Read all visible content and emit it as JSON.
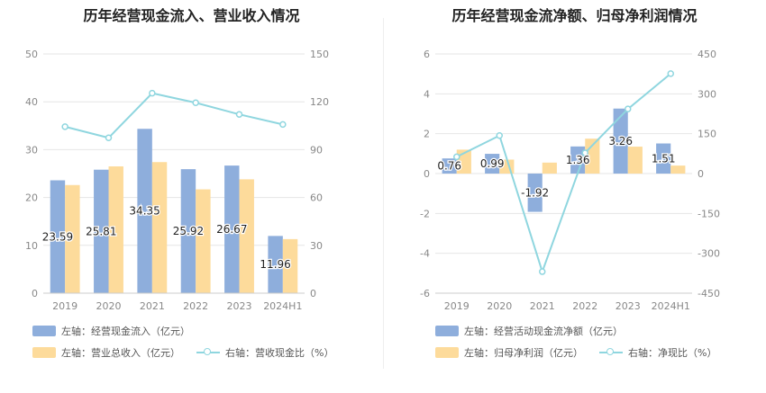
{
  "colors": {
    "bar1": "#8eaedc",
    "bar2": "#fddb9b",
    "line": "#8fd6df",
    "grid": "#e6e6e6",
    "tick": "#888888",
    "label": "#222222"
  },
  "chart_data": [
    {
      "type": "bar",
      "title": "历年经营现金流入、营业收入情况",
      "categories": [
        "2019",
        "2020",
        "2021",
        "2022",
        "2023",
        "2024H1"
      ],
      "series": [
        {
          "name": "左轴：经营现金流入（亿元）",
          "axis": "left",
          "values": [
            23.59,
            25.81,
            34.35,
            25.92,
            26.67,
            11.96
          ]
        },
        {
          "name": "左轴：营业总收入（亿元）",
          "axis": "left",
          "values": [
            22.6,
            26.5,
            27.4,
            21.7,
            23.8,
            11.3
          ]
        },
        {
          "name": "右轴：营收现金比（%）",
          "axis": "right",
          "type": "line",
          "values": [
            104.4,
            97.4,
            125.4,
            119.4,
            112.1,
            105.8
          ]
        }
      ],
      "data_labels": [
        "23.59",
        "25.81",
        "34.35",
        "25.92",
        "26.67",
        "11.96"
      ],
      "ylim_left": [
        0,
        50
      ],
      "yticks_left": [
        "0",
        "10",
        "20",
        "30",
        "40",
        "50"
      ],
      "ylim_right": [
        0,
        150
      ],
      "yticks_right": [
        "0",
        "30",
        "60",
        "90",
        "120",
        "150"
      ],
      "grid": true,
      "legend": "bottom-left"
    },
    {
      "type": "bar",
      "title": "历年经营现金流净额、归母净利润情况",
      "categories": [
        "2019",
        "2020",
        "2021",
        "2022",
        "2023",
        "2024H1"
      ],
      "series": [
        {
          "name": "左轴：经营活动现金流净额（亿元）",
          "axis": "left",
          "values": [
            0.76,
            0.99,
            -1.92,
            1.36,
            3.26,
            1.51
          ]
        },
        {
          "name": "左轴：归母净利润（亿元）",
          "axis": "left",
          "values": [
            1.2,
            0.7,
            0.55,
            1.75,
            1.35,
            0.4
          ]
        },
        {
          "name": "右轴：净现比（%）",
          "axis": "right",
          "type": "line",
          "values": [
            63,
            143,
            -369,
            78,
            243,
            376
          ]
        }
      ],
      "data_labels": [
        "0.76",
        "0.99",
        "-1.92",
        "1.36",
        "3.26",
        "1.51"
      ],
      "ylim_left": [
        -6,
        6
      ],
      "yticks_left": [
        "-6",
        "-4",
        "-2",
        "0",
        "2",
        "4",
        "6"
      ],
      "ylim_right": [
        -450,
        450
      ],
      "yticks_right": [
        "-450",
        "-300",
        "-150",
        "0",
        "150",
        "300",
        "450"
      ],
      "grid": true,
      "legend": "bottom-left"
    }
  ]
}
